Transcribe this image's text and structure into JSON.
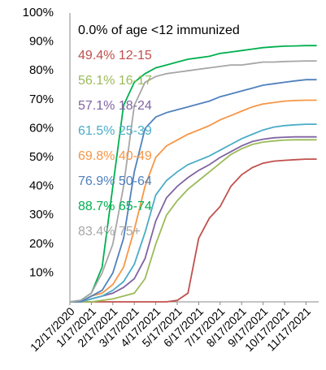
{
  "chart_data": {
    "type": "line",
    "annotation": "0.0% of age <12 immunized",
    "categories": [
      "12/17/2020",
      null,
      "1/17/2021",
      null,
      "2/17/2021",
      null,
      "3/17/2021",
      null,
      "4/17/2021",
      null,
      "5/17/2021",
      null,
      "6/17/2021",
      null,
      "7/17/2021",
      null,
      "8/17/2021",
      null,
      "9/17/2021",
      null,
      "10/17/2021",
      null,
      "11/17/2021",
      null
    ],
    "series": [
      {
        "name": "49.4% 12-15",
        "color": "#c0504d",
        "values": [
          0,
          0,
          0,
          0,
          0,
          0,
          0,
          0,
          0,
          0,
          0.5,
          3,
          22,
          29,
          33,
          40,
          44,
          46.5,
          48,
          48.7,
          49,
          49.2,
          49.4,
          49.4
        ]
      },
      {
        "name": "56.1% 16-17",
        "color": "#9bbb59",
        "values": [
          0,
          0,
          0,
          0.5,
          1,
          2,
          3,
          8,
          20,
          30,
          35,
          39,
          42,
          45,
          48,
          51,
          53,
          54.5,
          55.3,
          55.7,
          56,
          56.1,
          56.1,
          56.1
        ]
      },
      {
        "name": "57.1% 18-24",
        "color": "#8064a2",
        "values": [
          0,
          0,
          1,
          2,
          3,
          5,
          8,
          15,
          28,
          36,
          40,
          43,
          45.5,
          47.5,
          50,
          52,
          54,
          55.5,
          56.3,
          56.8,
          57,
          57.1,
          57.1,
          57.1
        ]
      },
      {
        "name": "61.5% 25-39",
        "color": "#4bacc6",
        "values": [
          0,
          0,
          1,
          2,
          4,
          7,
          13,
          24,
          37,
          42,
          45,
          47.5,
          49,
          50.5,
          52.5,
          54.5,
          56.5,
          58,
          59.5,
          60.5,
          61,
          61.3,
          61.5,
          61.5
        ]
      },
      {
        "name": "69.8% 40-49",
        "color": "#f79646",
        "values": [
          0,
          0,
          2,
          3,
          6,
          12,
          25,
          40,
          50,
          54,
          56,
          58,
          59.5,
          61,
          63,
          64.5,
          66,
          67.5,
          68.5,
          69,
          69.5,
          69.7,
          69.8,
          69.8
        ]
      },
      {
        "name": "76.9% 50-64",
        "color": "#4f81bd",
        "values": [
          0,
          0,
          2,
          4,
          10,
          22,
          45,
          60,
          64,
          65.5,
          66.5,
          67.5,
          68.5,
          69.5,
          71,
          72,
          73,
          74,
          75,
          75.5,
          76,
          76.5,
          76.9,
          76.9
        ]
      },
      {
        "name": "88.7% 65-74",
        "color": "#00b050",
        "values": [
          0,
          0.5,
          3,
          12,
          40,
          68,
          76,
          79,
          81,
          82,
          83,
          84,
          84.5,
          85,
          86,
          86.5,
          87,
          87.5,
          88,
          88.3,
          88.5,
          88.6,
          88.7,
          88.7
        ]
      },
      {
        "name": "83.4% 75+",
        "color": "#a6a6a6",
        "values": [
          0,
          0.5,
          3,
          10,
          20,
          40,
          68,
          76,
          78,
          79,
          79.5,
          80,
          80.5,
          81,
          81.5,
          82,
          82,
          82.5,
          83,
          83,
          83.2,
          83.3,
          83.4,
          83.4
        ]
      }
    ],
    "ylim": [
      0,
      100
    ],
    "yticks": [
      {
        "value": 10,
        "label": "10%"
      },
      {
        "value": 20,
        "label": "20%"
      },
      {
        "value": 30,
        "label": "30%"
      },
      {
        "value": 40,
        "label": "40%"
      },
      {
        "value": 50,
        "label": "50%"
      },
      {
        "value": 60,
        "label": "60%"
      },
      {
        "value": 70,
        "label": "70%"
      },
      {
        "value": 80,
        "label": "80%"
      },
      {
        "value": 90,
        "label": "90%"
      },
      {
        "value": 100,
        "label": "100%"
      }
    ],
    "grid": false
  }
}
